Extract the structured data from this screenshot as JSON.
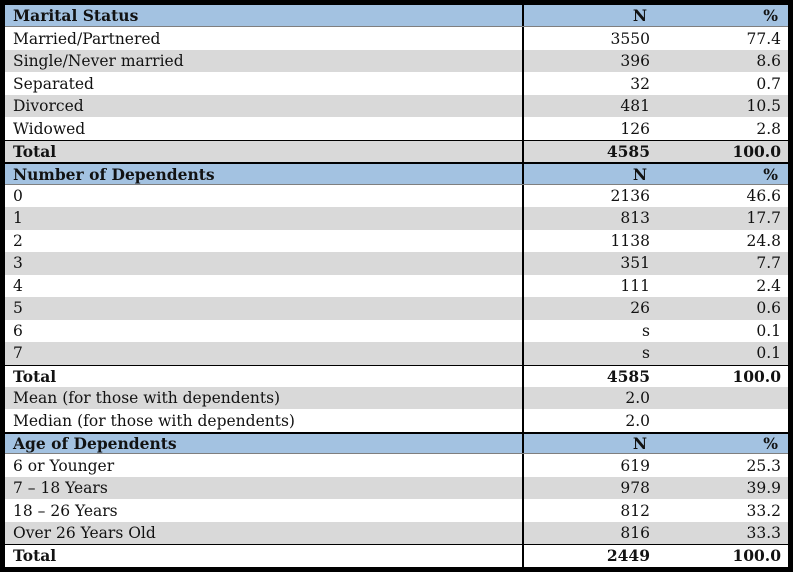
{
  "table": {
    "columns": {
      "n": "N",
      "pct": "%"
    },
    "colors": {
      "header_blue": "#a3c2e1",
      "row_gray": "#d9d9d9",
      "row_white": "#ffffff",
      "border_black": "#000000"
    },
    "sections": [
      {
        "title": "Marital Status",
        "rows": [
          {
            "label": "Married/Partnered",
            "n": "3550",
            "pct": "77.4",
            "total": false
          },
          {
            "label": "Single/Never married",
            "n": "396",
            "pct": "8.6",
            "total": false
          },
          {
            "label": "Separated",
            "n": "32",
            "pct": "0.7",
            "total": false
          },
          {
            "label": "Divorced",
            "n": "481",
            "pct": "10.5",
            "total": false
          },
          {
            "label": "Widowed",
            "n": "126",
            "pct": "2.8",
            "total": false
          },
          {
            "label": "Total",
            "n": "4585",
            "pct": "100.0",
            "total": true
          }
        ]
      },
      {
        "title": "Number of Dependents",
        "rows": [
          {
            "label": "0",
            "n": "2136",
            "pct": "46.6",
            "total": false
          },
          {
            "label": "1",
            "n": "813",
            "pct": "17.7",
            "total": false
          },
          {
            "label": "2",
            "n": "1138",
            "pct": "24.8",
            "total": false
          },
          {
            "label": "3",
            "n": "351",
            "pct": "7.7",
            "total": false
          },
          {
            "label": "4",
            "n": "111",
            "pct": "2.4",
            "total": false
          },
          {
            "label": "5",
            "n": "26",
            "pct": "0.6",
            "total": false
          },
          {
            "label": "6",
            "n": "s",
            "pct": "0.1",
            "total": false
          },
          {
            "label": "7",
            "n": "s",
            "pct": "0.1",
            "total": false
          },
          {
            "label": "Total",
            "n": "4585",
            "pct": "100.0",
            "total": true
          },
          {
            "label": "Mean (for those with dependents)",
            "n": "2.0",
            "pct": "",
            "total": false
          },
          {
            "label": "Median (for those with dependents)",
            "n": "2.0",
            "pct": "",
            "total": false
          }
        ]
      },
      {
        "title": "Age of Dependents",
        "rows": [
          {
            "label": "6 or Younger",
            "n": "619",
            "pct": "25.3",
            "total": false
          },
          {
            "label": "7 – 18 Years",
            "n": "978",
            "pct": "39.9",
            "total": false
          },
          {
            "label": "18 – 26 Years",
            "n": "812",
            "pct": "33.2",
            "total": false
          },
          {
            "label": "Over 26 Years Old",
            "n": "816",
            "pct": "33.3",
            "total": false
          },
          {
            "label": "Total",
            "n": "2449",
            "pct": "100.0",
            "total": true
          }
        ]
      }
    ]
  }
}
